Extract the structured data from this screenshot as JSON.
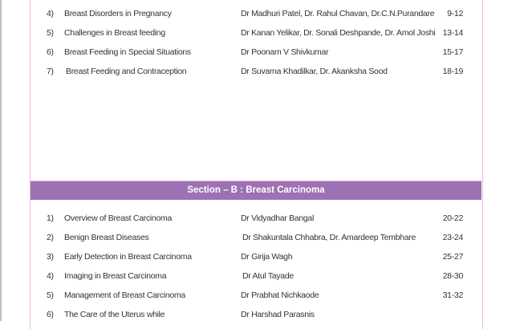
{
  "section_a": {
    "rows": [
      {
        "num": "4)",
        "title": "Breast Disorders in Pregnancy",
        "author": "Dr Madhuri Patel, Dr. Rahul Chavan, Dr.C.N.Purandare",
        "pages": "9-12"
      },
      {
        "num": "5)",
        "title": "Challenges in Breast feeding",
        "author": "Dr Kanan Yelikar, Dr. Sonali Deshpande, Dr. Amol Joshi",
        "pages": "13-14"
      },
      {
        "num": "6)",
        "title": "Breast Feeding in Special Situations",
        "author": "Dr Poonam V Shivkumar",
        "pages": "15-17"
      },
      {
        "num": "7)",
        "title": "Breast Feeding and Contraception",
        "author": "Dr Suvarna Khadilkar, Dr. Akanksha Sood",
        "pages": "18-19"
      }
    ]
  },
  "section_b": {
    "heading": "Section – B  : Breast Carcinoma",
    "color": "#9c72b4",
    "rows": [
      {
        "num": "1)",
        "title": "Overview of Breast Carcinoma",
        "author": "Dr Vidyadhar Bangal",
        "pages": "20-22"
      },
      {
        "num": "2)",
        "title": "Benign Breast Diseases",
        "author": "Dr Shakuntala Chhabra, Dr. Amardeep Tembhare",
        "pages": "23-24"
      },
      {
        "num": "3)",
        "title": "Early Detection in Breast Carcinoma",
        "author": "Dr Girija Wagh",
        "pages": "25-27"
      },
      {
        "num": "4)",
        "title": "Imaging in Breast  Carcinoma",
        "author": "Dr Atul Tayade",
        "pages": "28-30"
      },
      {
        "num": "5)",
        "title": "Management of Breast Carcinoma",
        "author": "Dr Prabhat Nichkaode",
        "pages": "31-32"
      },
      {
        "num": "6)",
        "title": "The Care of the Uterus while",
        "author": "Dr Harshad Parasnis",
        "pages": ""
      }
    ]
  }
}
